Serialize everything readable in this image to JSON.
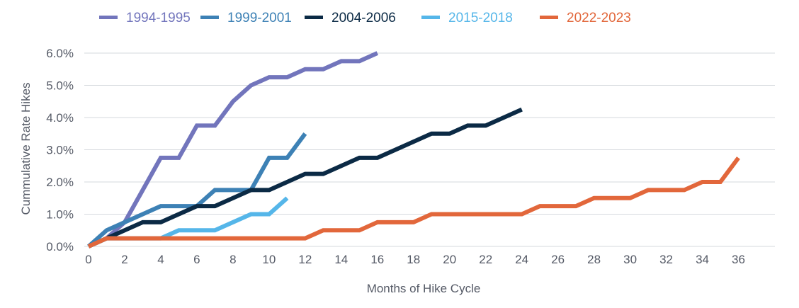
{
  "chart_data": {
    "type": "line",
    "xlabel": "Months of Hike Cycle",
    "ylabel": "Cummulative Rate Hikes",
    "xlim": [
      0,
      37
    ],
    "ylim": [
      0,
      6
    ],
    "x_ticks": [
      "0",
      "2",
      "4",
      "6",
      "8",
      "10",
      "12",
      "14",
      "16",
      "18",
      "20",
      "22",
      "24",
      "26",
      "28",
      "30",
      "32",
      "34",
      "36"
    ],
    "y_ticks": [
      "0.0%",
      "1.0%",
      "2.0%",
      "3.0%",
      "4.0%",
      "5.0%",
      "6.0%"
    ],
    "grid": "horizontal",
    "legend_position": "top",
    "series": [
      {
        "name": "1994-1995",
        "color": "#7275bc",
        "x": [
          0,
          1,
          2,
          3,
          4,
          5,
          6,
          7,
          8,
          9,
          10,
          11,
          12,
          13,
          14,
          15,
          16
        ],
        "y": [
          0.0,
          0.25,
          0.75,
          1.75,
          2.75,
          2.75,
          3.75,
          3.75,
          4.5,
          5.0,
          5.25,
          5.25,
          5.5,
          5.5,
          5.75,
          5.75,
          6.0
        ]
      },
      {
        "name": "1999-2001",
        "color": "#3d81b5",
        "x": [
          0,
          1,
          2,
          3,
          4,
          5,
          6,
          7,
          8,
          9,
          10,
          11,
          12
        ],
        "y": [
          0.0,
          0.5,
          0.75,
          1.0,
          1.25,
          1.25,
          1.25,
          1.75,
          1.75,
          1.75,
          2.75,
          2.75,
          3.5
        ]
      },
      {
        "name": "2004-2006",
        "color": "#0b2a45",
        "x": [
          0,
          1,
          2,
          3,
          4,
          5,
          6,
          7,
          8,
          9,
          10,
          11,
          12,
          13,
          14,
          15,
          16,
          17,
          18,
          19,
          20,
          21,
          22,
          23,
          24
        ],
        "y": [
          0.0,
          0.25,
          0.5,
          0.75,
          0.75,
          1.0,
          1.25,
          1.25,
          1.5,
          1.75,
          1.75,
          2.0,
          2.25,
          2.25,
          2.5,
          2.75,
          2.75,
          3.0,
          3.25,
          3.5,
          3.5,
          3.75,
          3.75,
          4.0,
          4.25
        ]
      },
      {
        "name": "2015-2018",
        "color": "#55b6e9",
        "x": [
          0,
          1,
          2,
          3,
          4,
          5,
          6,
          7,
          8,
          9,
          10,
          11
        ],
        "y": [
          0.0,
          0.25,
          0.25,
          0.25,
          0.25,
          0.5,
          0.5,
          0.5,
          0.75,
          1.0,
          1.0,
          1.5
        ]
      },
      {
        "name": "2022-2023",
        "color": "#e2673b",
        "x": [
          0,
          1,
          2,
          3,
          4,
          5,
          6,
          7,
          8,
          9,
          10,
          11,
          12,
          13,
          14,
          15,
          16,
          17,
          18,
          19,
          20,
          21,
          22,
          23,
          24,
          25,
          26,
          27,
          28,
          29,
          30,
          31,
          32,
          33,
          34,
          35,
          36
        ],
        "y": [
          0.0,
          0.25,
          0.25,
          0.25,
          0.25,
          0.25,
          0.25,
          0.25,
          0.25,
          0.25,
          0.25,
          0.25,
          0.25,
          0.5,
          0.5,
          0.5,
          0.75,
          0.75,
          0.75,
          1.0,
          1.0,
          1.0,
          1.0,
          1.0,
          1.0,
          1.25,
          1.25,
          1.25,
          1.5,
          1.5,
          1.5,
          1.75,
          1.75,
          1.75,
          2.0,
          2.0,
          2.75
        ]
      }
    ]
  }
}
